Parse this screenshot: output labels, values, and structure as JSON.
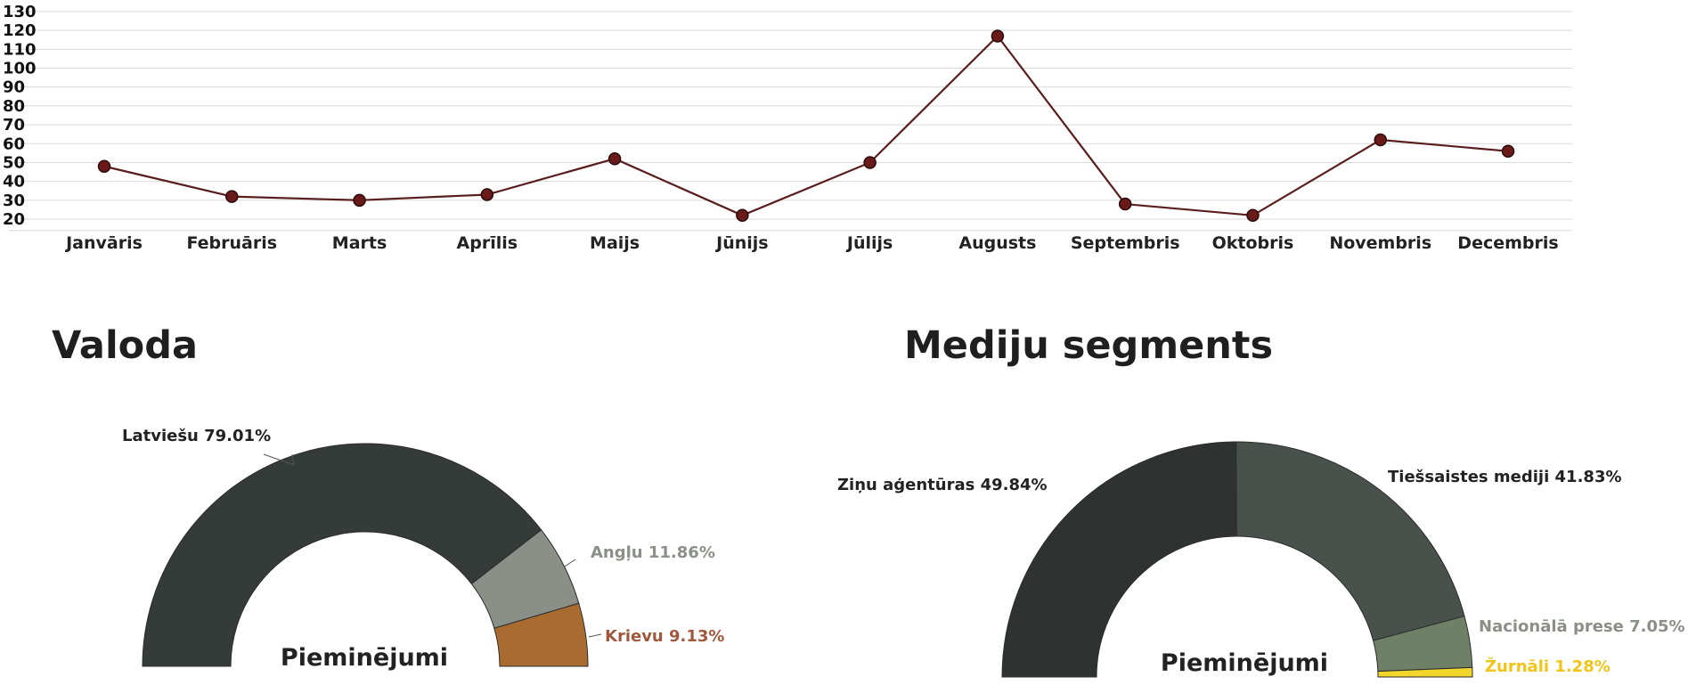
{
  "chart_data": [
    {
      "type": "line",
      "categories": [
        "Janvāris",
        "Februāris",
        "Marts",
        "Aprīlis",
        "Maijs",
        "Jūnijs",
        "Jūlijs",
        "Augusts",
        "Septembris",
        "Oktobris",
        "Novembris",
        "Decembris"
      ],
      "series": [
        {
          "values": [
            48,
            32,
            30,
            33,
            52,
            22,
            50,
            117,
            28,
            22,
            62,
            56
          ]
        }
      ],
      "yticks": [
        20,
        30,
        40,
        50,
        60,
        70,
        80,
        90,
        100,
        110,
        120,
        130
      ],
      "ylim": [
        14,
        130
      ],
      "grid": true,
      "colors": {
        "line": "#5a1d1d",
        "marker": "#6b1a1a",
        "marker_edge": "#2a0a0a",
        "grid": "#d9d9d9"
      }
    },
    {
      "type": "pie",
      "variant": "semi-donut",
      "title": "Valoda",
      "center_label": "Pieminējumi",
      "slices": [
        {
          "label": "Latviešu 79.01%",
          "value": 79.01,
          "color": "#343b38",
          "label_color": "#222222"
        },
        {
          "label": "Angļu 11.86%",
          "value": 11.86,
          "color": "#8a8f87",
          "label_color": "#8a8f87"
        },
        {
          "label": "Krievu 9.13%",
          "value": 9.13,
          "color": "#a86c30",
          "label_color": "#a0583c"
        }
      ]
    },
    {
      "type": "pie",
      "variant": "semi-donut",
      "title": "Mediju segments",
      "center_label": "Pieminējumi",
      "slices": [
        {
          "label": "Ziņu aģentūras 49.84%",
          "value": 49.84,
          "color": "#2e3331",
          "label_color": "#222222"
        },
        {
          "label": "Tiešsaistes mediji 41.83%",
          "value": 41.83,
          "color": "#48514c",
          "label_color": "#222222"
        },
        {
          "label": "Nacionālā prese 7.05%",
          "value": 7.05,
          "color": "#6e8066",
          "label_color": "#8a8f87"
        },
        {
          "label": "Žurnāli 1.28%",
          "value": 1.28,
          "color": "#f2d62b",
          "label_color": "#f2c418"
        }
      ]
    }
  ]
}
